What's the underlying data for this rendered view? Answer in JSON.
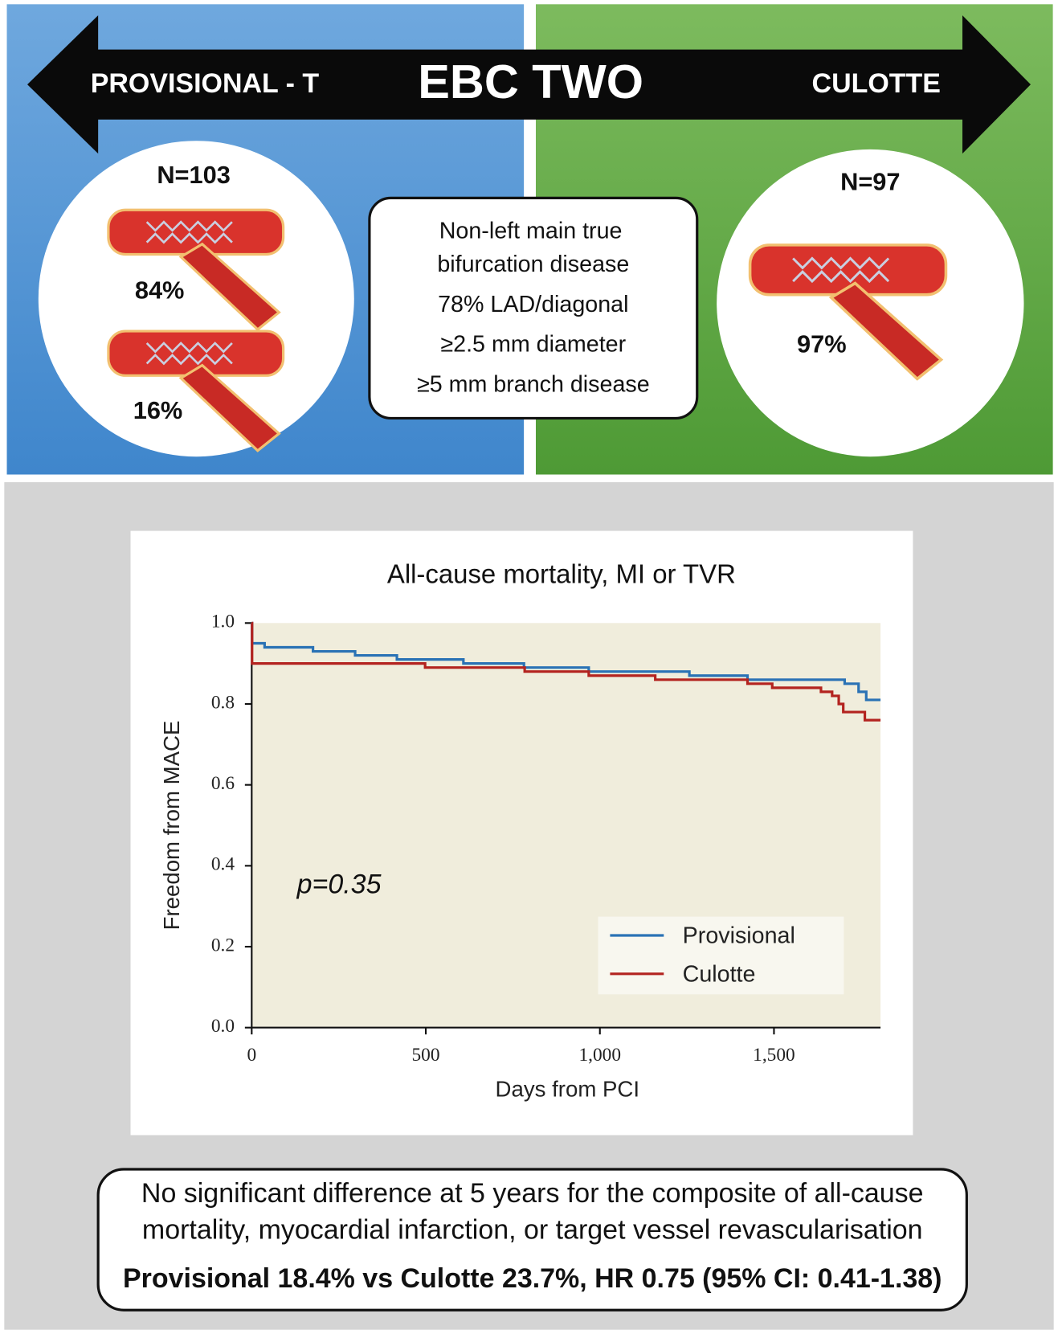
{
  "header": {
    "left": "PROVISIONAL - T",
    "title": "EBC TWO",
    "right": "CULOTTE"
  },
  "left_arm": {
    "n": "N=103",
    "upper_pct": "84%",
    "lower_pct": "16%"
  },
  "right_arm": {
    "n": "N=97",
    "pct": "97%"
  },
  "criteria": [
    "Non-left main true",
    "bifurcation disease",
    "78% LAD/diagonal",
    "≥2.5 mm diameter",
    "≥5 mm branch disease"
  ],
  "chart_data": {
    "type": "step",
    "title": "All-cause mortality, MI or TVR",
    "x_label": "Days from PCI",
    "y_label": "Freedom from MACE",
    "annotation": "p=0.35",
    "xlim": [
      0,
      1806
    ],
    "ylim": [
      0,
      1
    ],
    "xticks": [
      0,
      500,
      {
        "value": 1000,
        "label": "1,000"
      },
      {
        "value": 1500,
        "label": "1,500"
      }
    ],
    "yticks": [
      {
        "value": 0,
        "label": "0.0"
      },
      0.2,
      0.4,
      0.6,
      0.8,
      {
        "value": 1,
        "label": "1.0"
      }
    ],
    "plot_background": "#f0eddc",
    "legend": "lower right",
    "series": [
      {
        "name": "Provisional",
        "color": "#2a72b5",
        "x": [
          0,
          1,
          37,
          176,
          297,
          417,
          608,
          782,
          968,
          1257,
          1424,
          1703,
          1743,
          1765,
          1806
        ],
        "values": [
          1.0,
          0.95,
          0.94,
          0.93,
          0.92,
          0.91,
          0.9,
          0.89,
          0.88,
          0.87,
          0.86,
          0.85,
          0.83,
          0.81,
          0.81
        ]
      },
      {
        "name": "Culotte",
        "color": "#b3231f",
        "x": [
          0,
          1,
          498,
          784,
          968,
          1159,
          1424,
          1495,
          1635,
          1667,
          1686,
          1699,
          1761,
          1806
        ],
        "values": [
          1.0,
          0.9,
          0.89,
          0.88,
          0.87,
          0.86,
          0.85,
          0.84,
          0.83,
          0.82,
          0.8,
          0.78,
          0.76,
          0.76
        ]
      }
    ]
  },
  "conclusion": {
    "line1": "No significant difference at 5 years for the composite of all-cause",
    "line2": "mortality, myocardial infarction, or target vessel revascularisation",
    "line3": "Provisional 18.4% vs Culotte 23.7%, HR 0.75 (95% CI: 0.41-1.38)"
  }
}
